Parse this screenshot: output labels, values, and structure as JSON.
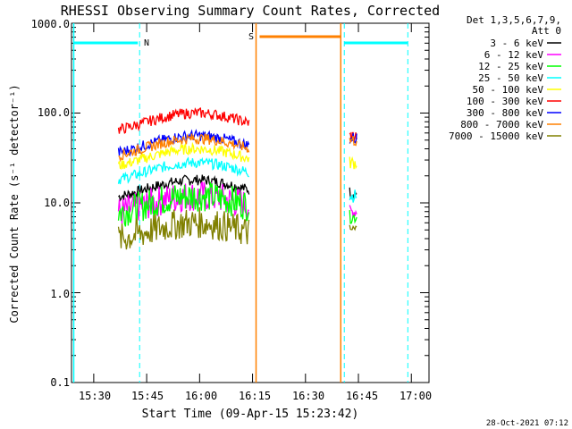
{
  "chart_data": {
    "type": "line",
    "title": "RHESSI Observing Summary Count Rates, Corrected",
    "xlabel": "Start Time (09-Apr-15 15:23:42)",
    "ylabel": "Corrected Count Rate (s⁻¹ detector⁻¹)",
    "ylog": true,
    "ylim": [
      0.1,
      1000
    ],
    "xlim": [
      "15:23:42",
      "17:05:00"
    ],
    "yticks": [
      "0.1",
      "1.0",
      "10.0",
      "100.0",
      "1000.0"
    ],
    "xticks": [
      "15:30",
      "15:45",
      "16:00",
      "16:15",
      "16:30",
      "16:45",
      "17:00"
    ],
    "legend_header": [
      "Det 1,3,5,6,7,9,",
      "Att 0"
    ],
    "legend_position": "right",
    "timestamp": "28-Oct-2021 07:12",
    "series": [
      {
        "name": "3 - 6 keV",
        "color": "#000000",
        "peak": 18,
        "post": 13
      },
      {
        "name": "6 - 12 keV",
        "color": "#ff00ff",
        "peak": 12,
        "post": 8
      },
      {
        "name": "12 - 25 keV",
        "color": "#00ff00",
        "peak": 12,
        "post": 7
      },
      {
        "name": "25 - 50 keV",
        "color": "#00ffff",
        "peak": 28,
        "post": 12
      },
      {
        "name": "50 - 100 keV",
        "color": "#ffff00",
        "peak": 40,
        "post": 28
      },
      {
        "name": "100 - 300 keV",
        "color": "#ff0000",
        "peak": 100,
        "post": 55
      },
      {
        "name": "300 - 800 keV",
        "color": "#0000ff",
        "peak": 56,
        "post": 52
      },
      {
        "name": "800 - 7000 keV",
        "color": "#ff8000",
        "peak": 52,
        "post": 50
      },
      {
        "name": "7000 - 15000 keV",
        "color": "#808000",
        "peak": 6,
        "post": 5
      }
    ],
    "annotations": [
      {
        "label": "N",
        "time": "15:43",
        "color": "#00ffff"
      },
      {
        "label": "S",
        "time": "16:17",
        "color": "#ff8000"
      }
    ]
  }
}
